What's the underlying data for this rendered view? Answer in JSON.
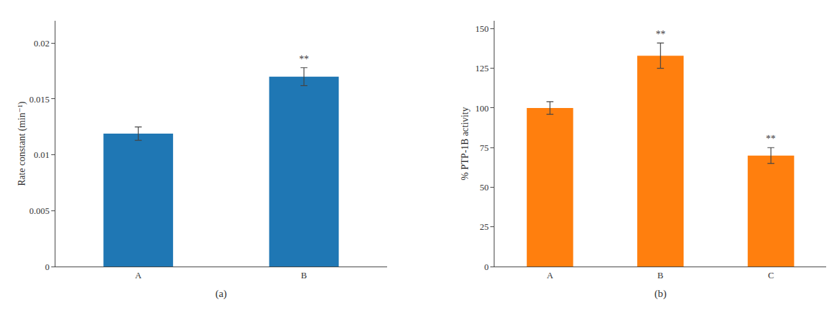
{
  "chart_data": [
    {
      "type": "bar",
      "subtitle": "(a)",
      "ylabel": "Rate constant (min⁻¹)",
      "categories": [
        "A",
        "B"
      ],
      "values": [
        0.0119,
        0.017
      ],
      "errors": [
        0.0006,
        0.0008
      ],
      "ylim": [
        0,
        0.022
      ],
      "yticks": [
        0,
        0.005,
        0.01,
        0.015,
        0.02
      ],
      "grid": false,
      "annotations": [
        {
          "x": "B",
          "text": "**"
        }
      ]
    },
    {
      "type": "bar",
      "subtitle": "(b)",
      "ylabel": "% PTP-1B activity",
      "categories": [
        "A",
        "B",
        "C"
      ],
      "values": [
        100,
        133,
        70
      ],
      "errors": [
        4,
        8,
        5
      ],
      "ylim": [
        0,
        155
      ],
      "yticks": [
        0,
        25,
        50,
        75,
        100,
        125,
        150
      ],
      "grid": false,
      "annotations": [
        {
          "x": "B",
          "text": "**"
        },
        {
          "x": "C",
          "text": "**"
        }
      ]
    }
  ]
}
